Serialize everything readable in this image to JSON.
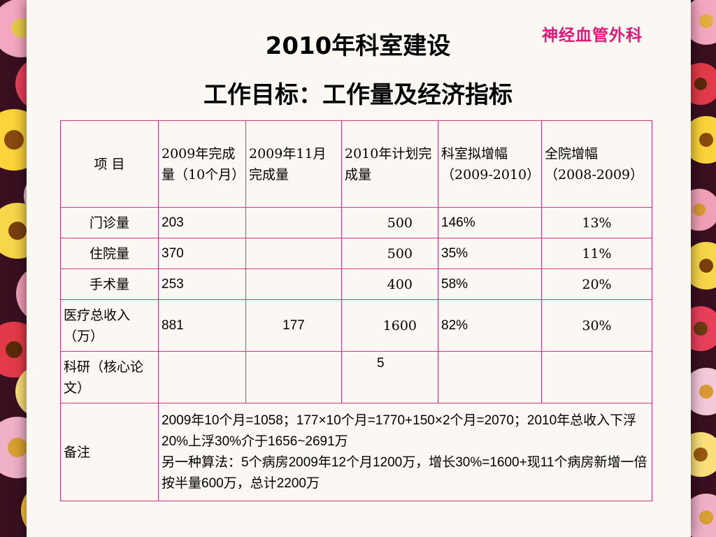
{
  "department": "神经血管外科",
  "title_line1": "2010年科室建设",
  "title_line2": "工作目标：工作量及经济指标",
  "table": {
    "headers": [
      "项  目",
      "2009年完成量（10个月）",
      "2009年11月完成量",
      "2010年计划完成量",
      "科室拟增幅（2009-2010）",
      "全院增幅（2008-2009）"
    ],
    "rows": [
      {
        "item": "门诊量",
        "c2009_10m": "203",
        "c2009_nov": "",
        "plan2010": "500",
        "dept_growth": "146%",
        "hosp_growth": "13%"
      },
      {
        "item": "住院量",
        "c2009_10m": "370",
        "c2009_nov": "",
        "plan2010": "500",
        "dept_growth": "35%",
        "hosp_growth": "11%"
      },
      {
        "item": "手术量",
        "c2009_10m": "253",
        "c2009_nov": "",
        "plan2010": "400",
        "dept_growth": "58%",
        "hosp_growth": "20%"
      },
      {
        "item": "医疗总收入（万）",
        "c2009_10m": "881",
        "c2009_nov": "177",
        "plan2010": "1600",
        "dept_growth": "82%",
        "hosp_growth": "30%"
      },
      {
        "item": "科研（核心论文）",
        "c2009_10m": "",
        "c2009_nov": "",
        "plan2010": "5",
        "dept_growth": "",
        "hosp_growth": ""
      }
    ],
    "remarks_label": "备注",
    "remarks": [
      "2009年10个月=1058；177×10个月=1770+150×2个月=2070；2010年总收入下浮20%上浮30%介于1656~2691万",
      "另一种算法：5个病房2009年12个月1200万，增长30%=1600+现11个病房新增一倍按半量600万，总计2200万"
    ]
  }
}
